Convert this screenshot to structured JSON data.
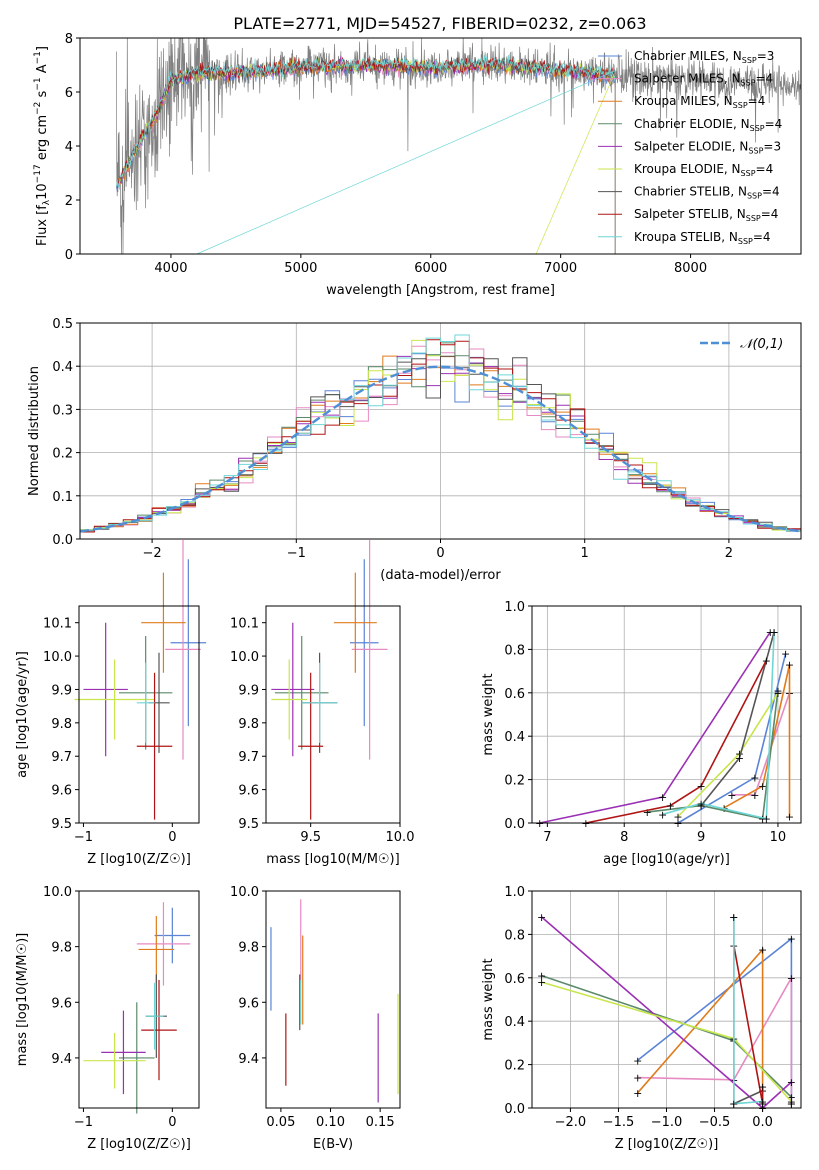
{
  "title": "PLATE=2771, MJD=54527, FIBERID=0232, z=0.063",
  "colors": {
    "Chabrier MILES": "#5b84d6",
    "Salpeter MILES": "#e78ac3",
    "Kroupa MILES": "#e07b1c",
    "Chabrier ELODIE": "#5a8a6a",
    "Salpeter ELODIE": "#9b30b4",
    "Kroupa ELODIE": "#c8e64c",
    "Chabrier STELIB": "#555555",
    "Salpeter STELIB": "#b01515",
    "Kroupa STELIB": "#6fd6d6"
  },
  "chart_data": [
    {
      "id": "spectrum",
      "type": "line",
      "xlabel": "wavelength [Angstrom, rest frame]",
      "ylabel": "Flux [f_λ10^-17 erg cm^-2 s^-1 A^-1]",
      "xlim": [
        3300,
        8850
      ],
      "ylim": [
        0,
        8
      ],
      "xticks": [
        4000,
        5000,
        6000,
        7000,
        8000
      ],
      "yticks": [
        0,
        2,
        4,
        6,
        8
      ],
      "legend": [
        "Chabrier MILES, N_SSP=3",
        "Salpeter MILES, N_SSP=4",
        "Kroupa MILES, N_SSP=4",
        "Chabrier ELODIE, N_SSP=4",
        "Salpeter ELODIE, N_SSP=3",
        "Kroupa ELODIE, N_SSP=4",
        "Chabrier STELIB, N_SSP=4",
        "Salpeter STELIB, N_SSP=4",
        "Kroupa STELIB, N_SSP=4"
      ],
      "legend_position": "top-right",
      "data_wavelength_range": [
        3580,
        8850
      ],
      "model_continuum": {
        "x": [
          3580,
          3700,
          3900,
          4000,
          4200,
          4500,
          5000,
          5500,
          6000,
          6500,
          7000,
          7400
        ],
        "y": [
          2.5,
          3.6,
          5.3,
          6.4,
          6.7,
          6.7,
          6.9,
          7.0,
          6.9,
          7.0,
          6.8,
          6.6
        ]
      }
    },
    {
      "id": "residuals",
      "type": "histogram",
      "xlabel": "(data-model)/error",
      "ylabel": "Normed distribution",
      "xlim": [
        -2.5,
        2.5
      ],
      "ylim": [
        0,
        0.5
      ],
      "xticks": [
        -2,
        -1,
        0,
        1,
        2
      ],
      "yticks": [
        0.0,
        0.1,
        0.2,
        0.3,
        0.4,
        0.5
      ],
      "grid": true,
      "legend": "𝒩(0,1)",
      "legend_position": "top-right"
    },
    {
      "id": "age-Z",
      "type": "errorbar",
      "xlabel": "Z [log10(Z/Z☉)]",
      "ylabel": "age [log10(age/yr)]",
      "xlim": [
        -1.05,
        0.3
      ],
      "ylim": [
        9.5,
        10.15
      ],
      "xticks": [
        -1,
        0
      ],
      "yticks": [
        9.5,
        9.6,
        9.7,
        9.8,
        9.9,
        10.0,
        10.1
      ],
      "points": [
        {
          "model": "Chabrier MILES",
          "x": 0.18,
          "xerr": 0.2,
          "y": 10.04,
          "yerr": 0.25
        },
        {
          "model": "Salpeter MILES",
          "x": 0.12,
          "xerr": 0.2,
          "y": 10.02,
          "yerr": 0.33
        },
        {
          "model": "Kroupa MILES",
          "x": -0.1,
          "xerr": 0.25,
          "y": 10.1,
          "yerr": 0.15
        },
        {
          "model": "Chabrier ELODIE",
          "x": -0.3,
          "xerr": 0.3,
          "y": 9.89,
          "yerr": 0.17
        },
        {
          "model": "Salpeter ELODIE",
          "x": -0.75,
          "xerr": 0.25,
          "y": 9.9,
          "yerr": 0.2
        },
        {
          "model": "Kroupa ELODIE",
          "x": -0.65,
          "xerr": 0.45,
          "y": 9.87,
          "yerr": 0.12
        },
        {
          "model": "Chabrier STELIB",
          "x": -0.15,
          "xerr": 0.12,
          "y": 9.86,
          "yerr": 0.15
        },
        {
          "model": "Salpeter STELIB",
          "x": -0.2,
          "xerr": 0.2,
          "y": 9.73,
          "yerr": 0.22
        },
        {
          "model": "Kroupa STELIB",
          "x": -0.3,
          "xerr": 0.1,
          "y": 9.86,
          "yerr": 0.12
        }
      ]
    },
    {
      "id": "age-mass",
      "type": "errorbar",
      "xlabel": "mass [log10(M/M☉)]",
      "ylabel": "",
      "xlim": [
        9.25,
        10.0
      ],
      "ylim": [
        9.5,
        10.15
      ],
      "xticks": [
        9.5,
        10.0
      ],
      "yticks": [
        9.5,
        9.6,
        9.7,
        9.8,
        9.9,
        10.0,
        10.1
      ],
      "points": [
        {
          "model": "Chabrier MILES",
          "x": 9.8,
          "xerr": 0.08,
          "y": 10.04,
          "yerr": 0.25
        },
        {
          "model": "Salpeter MILES",
          "x": 9.83,
          "xerr": 0.1,
          "y": 10.02,
          "yerr": 0.33
        },
        {
          "model": "Kroupa MILES",
          "x": 9.75,
          "xerr": 0.12,
          "y": 10.1,
          "yerr": 0.15
        },
        {
          "model": "Chabrier ELODIE",
          "x": 9.45,
          "xerr": 0.15,
          "y": 9.89,
          "yerr": 0.17
        },
        {
          "model": "Salpeter ELODIE",
          "x": 9.4,
          "xerr": 0.12,
          "y": 9.9,
          "yerr": 0.2
        },
        {
          "model": "Kroupa ELODIE",
          "x": 9.38,
          "xerr": 0.1,
          "y": 9.87,
          "yerr": 0.12
        },
        {
          "model": "Chabrier STELIB",
          "x": 9.55,
          "xerr": 0.1,
          "y": 9.86,
          "yerr": 0.15
        },
        {
          "model": "Salpeter STELIB",
          "x": 9.5,
          "xerr": 0.07,
          "y": 9.73,
          "yerr": 0.22
        },
        {
          "model": "Kroupa STELIB",
          "x": 9.55,
          "xerr": 0.1,
          "y": 9.86,
          "yerr": 0.12
        }
      ]
    },
    {
      "id": "weight-age",
      "type": "line",
      "xlabel": "age [log10(age/yr)]",
      "ylabel": "mass weight",
      "xlim": [
        6.8,
        10.3
      ],
      "ylim": [
        0,
        1
      ],
      "xticks": [
        7,
        8,
        9,
        10
      ],
      "yticks": [
        0.0,
        0.2,
        0.4,
        0.6,
        0.8,
        1.0
      ],
      "grid": true
    },
    {
      "id": "mass-Z",
      "type": "errorbar",
      "xlabel": "Z [log10(Z/Z☉)]",
      "ylabel": "mass [log10(M/M☉)]",
      "xlim": [
        -1.05,
        0.3
      ],
      "ylim": [
        9.22,
        10.0
      ],
      "xticks": [
        -1,
        0
      ],
      "yticks": [
        9.4,
        9.6,
        9.8,
        10.0
      ],
      "points": [
        {
          "model": "Chabrier MILES",
          "x": 0.0,
          "xerr": 0.2,
          "y": 9.84,
          "yerr": 0.1
        },
        {
          "model": "Salpeter MILES",
          "x": -0.1,
          "xerr": 0.3,
          "y": 9.81,
          "yerr": 0.15
        },
        {
          "model": "Kroupa MILES",
          "x": -0.18,
          "xerr": 0.2,
          "y": 9.79,
          "yerr": 0.12
        },
        {
          "model": "Chabrier ELODIE",
          "x": -0.4,
          "xerr": 0.2,
          "y": 9.4,
          "yerr": 0.2
        },
        {
          "model": "Salpeter ELODIE",
          "x": -0.55,
          "xerr": 0.25,
          "y": 9.42,
          "yerr": 0.15
        },
        {
          "model": "Kroupa ELODIE",
          "x": -0.65,
          "xerr": 0.35,
          "y": 9.39,
          "yerr": 0.1
        },
        {
          "model": "Chabrier STELIB",
          "x": -0.18,
          "xerr": 0.12,
          "y": 9.55,
          "yerr": 0.15
        },
        {
          "model": "Salpeter STELIB",
          "x": -0.15,
          "xerr": 0.2,
          "y": 9.5,
          "yerr": 0.18
        },
        {
          "model": "Kroupa STELIB",
          "x": -0.2,
          "xerr": 0.1,
          "y": 9.55,
          "yerr": 0.12
        }
      ]
    },
    {
      "id": "mass-EBV",
      "type": "errorbar",
      "xlabel": "E(B-V)",
      "ylabel": "",
      "xlim": [
        0.035,
        0.17
      ],
      "ylim": [
        9.22,
        10.0
      ],
      "xticks": [
        0.05,
        0.1,
        0.15
      ],
      "yticks": [
        9.4,
        9.6,
        9.8,
        10.0
      ],
      "points": [
        {
          "model": "Chabrier MILES",
          "x": 0.04,
          "y": 9.72,
          "yerr": 0.15
        },
        {
          "model": "Salpeter MILES",
          "x": 0.07,
          "y": 9.82,
          "yerr": 0.15
        },
        {
          "model": "Kroupa MILES",
          "x": 0.072,
          "y": 9.68,
          "yerr": 0.16
        },
        {
          "model": "Chabrier STELIB",
          "x": 0.069,
          "y": 9.6,
          "yerr": 0.1
        },
        {
          "model": "Kroupa STELIB",
          "x": 0.07,
          "y": 9.6,
          "yerr": 0.08
        },
        {
          "model": "Salpeter STELIB",
          "x": 0.055,
          "y": 9.43,
          "yerr": 0.13
        },
        {
          "model": "Salpeter ELODIE",
          "x": 0.148,
          "y": 9.4,
          "yerr": 0.16
        },
        {
          "model": "Kroupa ELODIE",
          "x": 0.168,
          "y": 9.45,
          "yerr": 0.18
        }
      ]
    },
    {
      "id": "weight-Z",
      "type": "line",
      "xlabel": "Z [log10(Z/Z☉)]",
      "ylabel": "mass weight",
      "xlim": [
        -2.4,
        0.4
      ],
      "ylim": [
        0,
        1
      ],
      "xticks": [
        -2.0,
        -1.5,
        -1.0,
        -0.5,
        0.0
      ],
      "yticks": [
        0.0,
        0.2,
        0.4,
        0.6,
        0.8,
        1.0
      ],
      "grid": true
    }
  ]
}
